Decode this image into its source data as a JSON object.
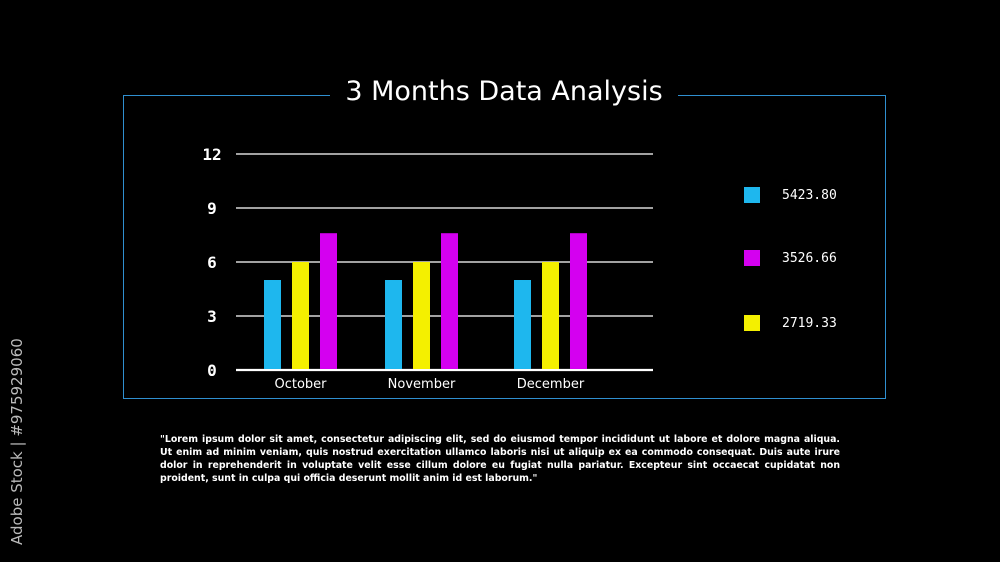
{
  "title": "3 Months Data Analysis",
  "chart_data": {
    "type": "bar",
    "title": "3 Months Data Analysis",
    "categories": [
      "October",
      "November",
      "December"
    ],
    "series": [
      {
        "color": "#1eb7ee",
        "values": [
          5,
          5,
          5
        ]
      },
      {
        "color": "#f4f000",
        "values": [
          6,
          6,
          6
        ]
      },
      {
        "color": "#d400f0",
        "values": [
          7.6,
          7.6,
          7.6
        ]
      }
    ],
    "yticks": [
      "0",
      "3",
      "6",
      "9",
      "12"
    ],
    "ylim": [
      0,
      12
    ],
    "grid": true,
    "xlabel": "",
    "ylabel": ""
  },
  "legend": [
    {
      "color": "#1eb7ee",
      "value": "5423.80"
    },
    {
      "color": "#d400f0",
      "value": "3526.66"
    },
    {
      "color": "#f4f000",
      "value": "2719.33"
    }
  ],
  "paragraph": "\"Lorem ipsum dolor sit amet, consectetur adipiscing elit, sed do eiusmod tempor incididunt ut labore et dolore magna aliqua. Ut enim ad minim veniam, quis nostrud exercitation ullamco laboris nisi ut aliquip ex ea commodo consequat. Duis aute irure dolor in reprehenderit in voluptate velit esse cillum dolore eu fugiat nulla pariatur. Excepteur sint occaecat cupidatat non proident, sunt in culpa qui officia deserunt mollit anim id est laborum.\"",
  "watermark": "Adobe Stock | #975929060"
}
